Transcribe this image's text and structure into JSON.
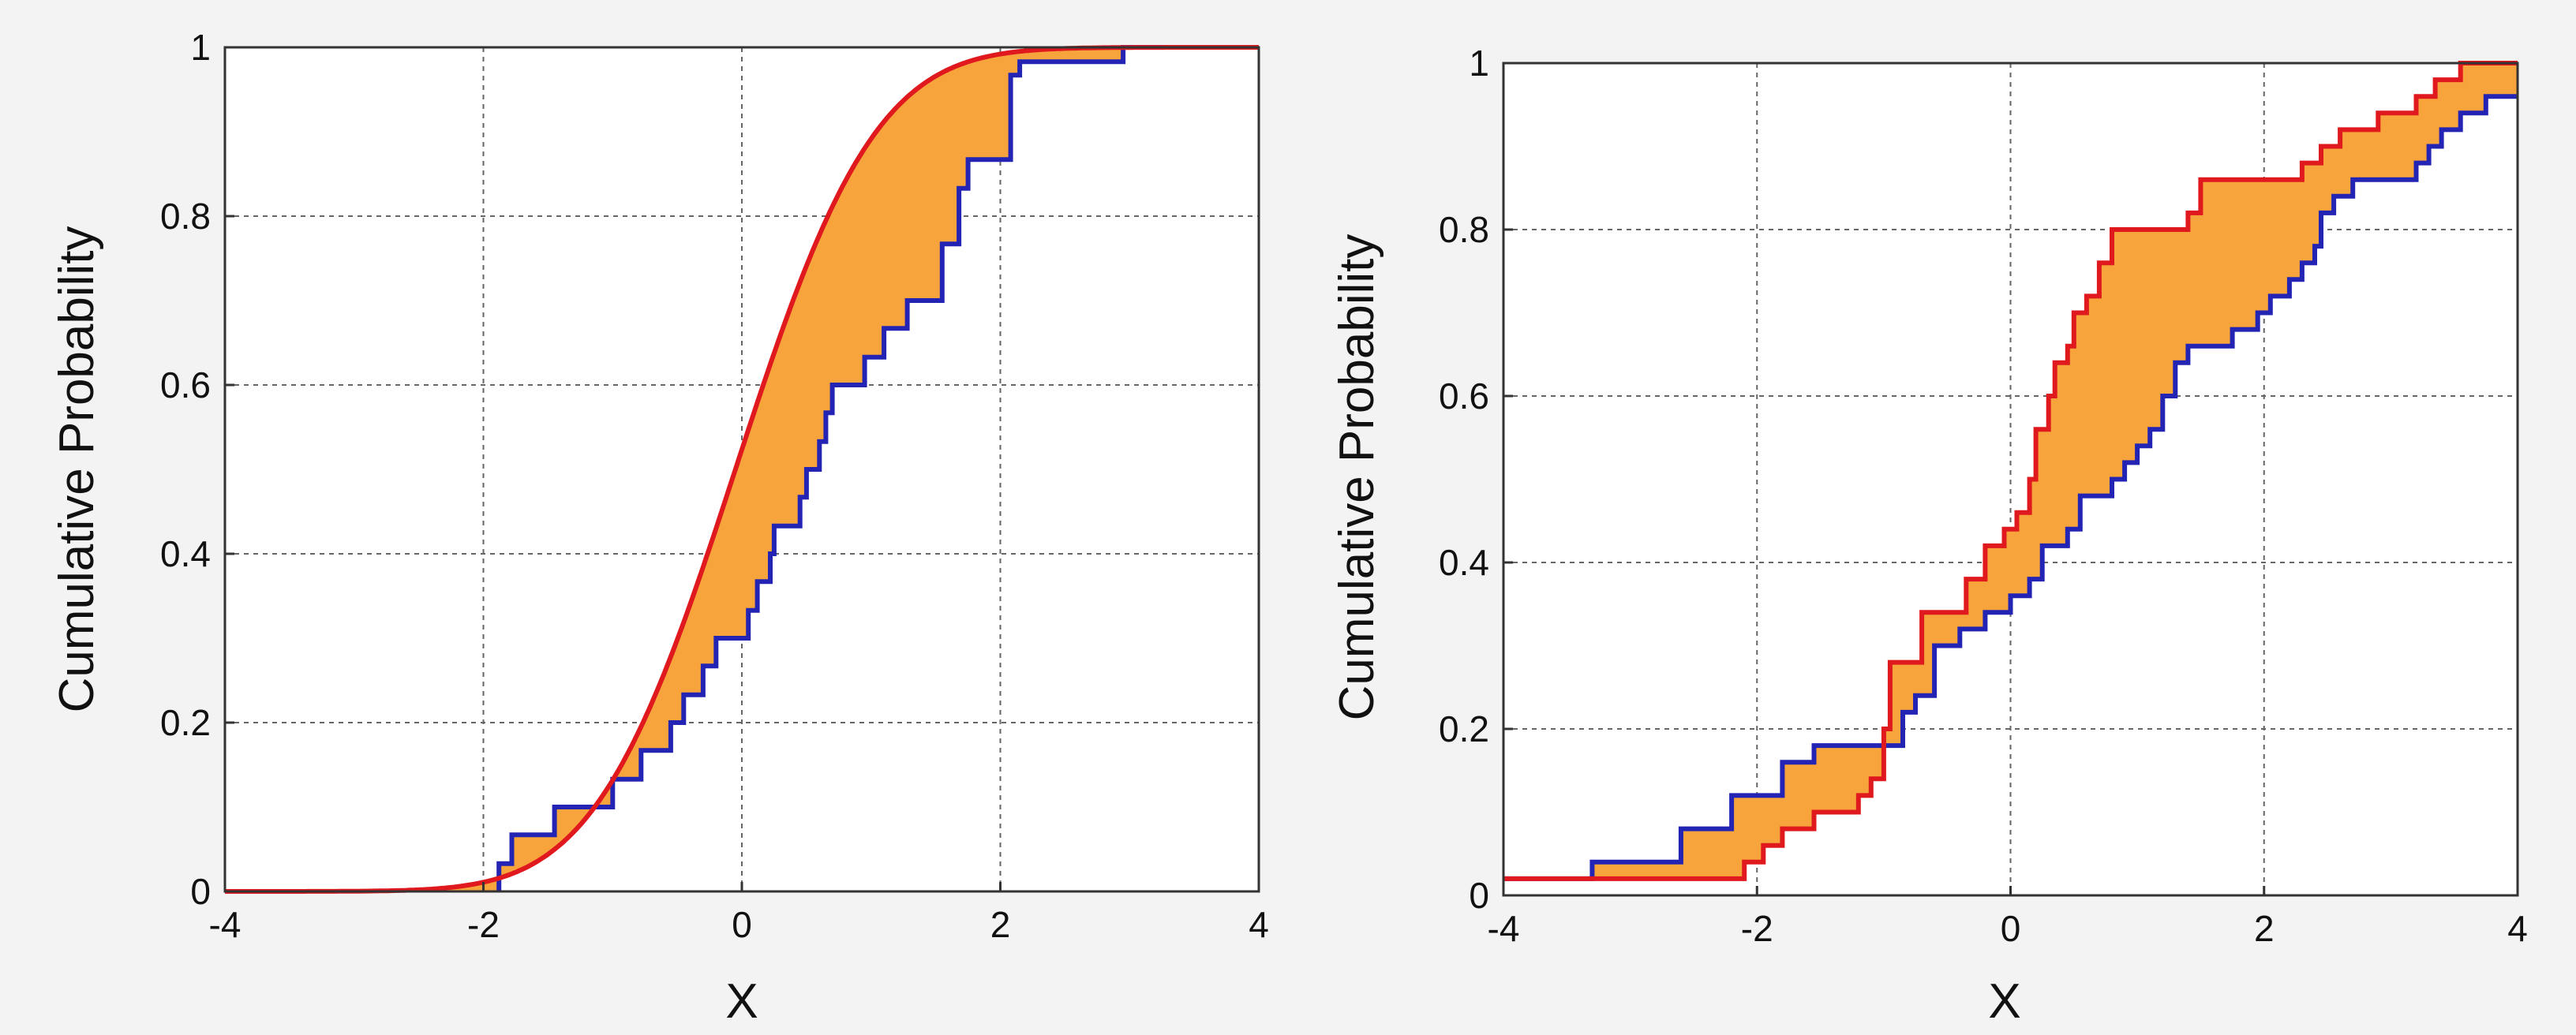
{
  "colors": {
    "band_fill": "#f7a43c",
    "red_curve": "#e0191f",
    "blue_curve": "#2424b4",
    "grid": "#666666",
    "axes": "#333333",
    "plot_background": "#ffffff",
    "page_background": "#f3f3f3"
  },
  "chart_data": [
    {
      "type": "line",
      "description": "empirical CDF step function (blue) vs fitted normal CDF (red), region between shaded orange",
      "xlabel": "X",
      "ylabel": "Cumulative Probability",
      "xlim": [
        -4,
        4
      ],
      "ylim": [
        0,
        1
      ],
      "xticks": [
        -4,
        -2,
        0,
        2,
        4
      ],
      "xtick_labels": [
        "-4",
        "-2",
        "0",
        "2",
        "4"
      ],
      "yticks": [
        0,
        0.2,
        0.4,
        0.6,
        0.8,
        1
      ],
      "ytick_labels": [
        "0",
        "0.2",
        "0.4",
        "0.6",
        "0.8",
        "1"
      ],
      "grid": true,
      "shaded_between": true,
      "series": [
        {
          "kind": "normal-cdf",
          "color": "red",
          "mu": -0.05,
          "sigma": 0.85,
          "x_range": [
            -4,
            4
          ]
        },
        {
          "kind": "step",
          "color": "blue",
          "points": [
            [
              -1.88,
              0
            ],
            [
              -1.88,
              0.033
            ],
            [
              -1.78,
              0.033
            ],
            [
              -1.78,
              0.067
            ],
            [
              -1.45,
              0.067
            ],
            [
              -1.45,
              0.1
            ],
            [
              -1.0,
              0.1
            ],
            [
              -1.0,
              0.133
            ],
            [
              -0.78,
              0.133
            ],
            [
              -0.78,
              0.167
            ],
            [
              -0.55,
              0.167
            ],
            [
              -0.55,
              0.2
            ],
            [
              -0.45,
              0.2
            ],
            [
              -0.45,
              0.233
            ],
            [
              -0.3,
              0.233
            ],
            [
              -0.3,
              0.267
            ],
            [
              -0.2,
              0.267
            ],
            [
              -0.2,
              0.3
            ],
            [
              0.05,
              0.3
            ],
            [
              0.05,
              0.333
            ],
            [
              0.12,
              0.333
            ],
            [
              0.12,
              0.367
            ],
            [
              0.22,
              0.367
            ],
            [
              0.22,
              0.4
            ],
            [
              0.25,
              0.4
            ],
            [
              0.25,
              0.433
            ],
            [
              0.45,
              0.433
            ],
            [
              0.45,
              0.467
            ],
            [
              0.5,
              0.467
            ],
            [
              0.5,
              0.5
            ],
            [
              0.6,
              0.5
            ],
            [
              0.6,
              0.533
            ],
            [
              0.65,
              0.533
            ],
            [
              0.65,
              0.567
            ],
            [
              0.7,
              0.567
            ],
            [
              0.7,
              0.6
            ],
            [
              0.95,
              0.6
            ],
            [
              0.95,
              0.633
            ],
            [
              1.1,
              0.633
            ],
            [
              1.1,
              0.667
            ],
            [
              1.28,
              0.667
            ],
            [
              1.28,
              0.7
            ],
            [
              1.55,
              0.7
            ],
            [
              1.55,
              0.767
            ],
            [
              1.68,
              0.767
            ],
            [
              1.68,
              0.833
            ],
            [
              1.75,
              0.833
            ],
            [
              1.75,
              0.867
            ],
            [
              2.08,
              0.867
            ],
            [
              2.08,
              0.967
            ],
            [
              2.15,
              0.967
            ],
            [
              2.15,
              0.983
            ],
            [
              2.95,
              0.983
            ],
            [
              2.95,
              1
            ],
            [
              4,
              1
            ]
          ]
        }
      ]
    },
    {
      "type": "line",
      "description": "two empirical CDF step functions (red and blue), region between shaded orange",
      "xlabel": "X",
      "ylabel": "Cumulative Probability",
      "xlim": [
        -4,
        4
      ],
      "ylim": [
        0,
        1
      ],
      "xticks": [
        -4,
        -2,
        0,
        2,
        4
      ],
      "xtick_labels": [
        "-4",
        "-2",
        "0",
        "2",
        "4"
      ],
      "yticks": [
        0,
        0.2,
        0.4,
        0.6,
        0.8,
        1
      ],
      "ytick_labels": [
        "0",
        "0.2",
        "0.4",
        "0.6",
        "0.8",
        "1"
      ],
      "grid": true,
      "shaded_between": true,
      "series": [
        {
          "kind": "step",
          "color": "red",
          "points": [
            [
              -4,
              0.02
            ],
            [
              -2.1,
              0.02
            ],
            [
              -2.1,
              0.04
            ],
            [
              -1.95,
              0.04
            ],
            [
              -1.95,
              0.06
            ],
            [
              -1.8,
              0.06
            ],
            [
              -1.8,
              0.08
            ],
            [
              -1.55,
              0.08
            ],
            [
              -1.55,
              0.1
            ],
            [
              -1.2,
              0.1
            ],
            [
              -1.2,
              0.12
            ],
            [
              -1.1,
              0.12
            ],
            [
              -1.1,
              0.14
            ],
            [
              -1.0,
              0.14
            ],
            [
              -1.0,
              0.2
            ],
            [
              -0.95,
              0.2
            ],
            [
              -0.95,
              0.28
            ],
            [
              -0.7,
              0.28
            ],
            [
              -0.7,
              0.34
            ],
            [
              -0.35,
              0.34
            ],
            [
              -0.35,
              0.38
            ],
            [
              -0.2,
              0.38
            ],
            [
              -0.2,
              0.42
            ],
            [
              -0.05,
              0.42
            ],
            [
              -0.05,
              0.44
            ],
            [
              0.05,
              0.44
            ],
            [
              0.05,
              0.46
            ],
            [
              0.15,
              0.46
            ],
            [
              0.15,
              0.5
            ],
            [
              0.2,
              0.5
            ],
            [
              0.2,
              0.56
            ],
            [
              0.3,
              0.56
            ],
            [
              0.3,
              0.6
            ],
            [
              0.35,
              0.6
            ],
            [
              0.35,
              0.64
            ],
            [
              0.45,
              0.64
            ],
            [
              0.45,
              0.66
            ],
            [
              0.5,
              0.66
            ],
            [
              0.5,
              0.7
            ],
            [
              0.6,
              0.7
            ],
            [
              0.6,
              0.72
            ],
            [
              0.7,
              0.72
            ],
            [
              0.7,
              0.76
            ],
            [
              0.8,
              0.76
            ],
            [
              0.8,
              0.8
            ],
            [
              1.4,
              0.8
            ],
            [
              1.4,
              0.82
            ],
            [
              1.5,
              0.82
            ],
            [
              1.5,
              0.86
            ],
            [
              2.3,
              0.86
            ],
            [
              2.3,
              0.88
            ],
            [
              2.45,
              0.88
            ],
            [
              2.45,
              0.9
            ],
            [
              2.6,
              0.9
            ],
            [
              2.6,
              0.92
            ],
            [
              2.9,
              0.92
            ],
            [
              2.9,
              0.94
            ],
            [
              3.2,
              0.94
            ],
            [
              3.2,
              0.96
            ],
            [
              3.35,
              0.96
            ],
            [
              3.35,
              0.98
            ],
            [
              3.55,
              0.98
            ],
            [
              3.55,
              1
            ],
            [
              4,
              1
            ]
          ]
        },
        {
          "kind": "step",
          "color": "blue",
          "points": [
            [
              -4,
              0.02
            ],
            [
              -3.3,
              0.02
            ],
            [
              -3.3,
              0.04
            ],
            [
              -2.6,
              0.04
            ],
            [
              -2.6,
              0.08
            ],
            [
              -2.2,
              0.08
            ],
            [
              -2.2,
              0.12
            ],
            [
              -1.8,
              0.12
            ],
            [
              -1.8,
              0.16
            ],
            [
              -1.55,
              0.16
            ],
            [
              -1.55,
              0.18
            ],
            [
              -0.85,
              0.18
            ],
            [
              -0.85,
              0.22
            ],
            [
              -0.75,
              0.22
            ],
            [
              -0.75,
              0.24
            ],
            [
              -0.6,
              0.24
            ],
            [
              -0.6,
              0.3
            ],
            [
              -0.4,
              0.3
            ],
            [
              -0.4,
              0.32
            ],
            [
              -0.2,
              0.32
            ],
            [
              -0.2,
              0.34
            ],
            [
              0,
              0.34
            ],
            [
              0,
              0.36
            ],
            [
              0.15,
              0.36
            ],
            [
              0.15,
              0.38
            ],
            [
              0.25,
              0.38
            ],
            [
              0.25,
              0.42
            ],
            [
              0.45,
              0.42
            ],
            [
              0.45,
              0.44
            ],
            [
              0.55,
              0.44
            ],
            [
              0.55,
              0.48
            ],
            [
              0.8,
              0.48
            ],
            [
              0.8,
              0.5
            ],
            [
              0.9,
              0.5
            ],
            [
              0.9,
              0.52
            ],
            [
              1.0,
              0.52
            ],
            [
              1.0,
              0.54
            ],
            [
              1.1,
              0.54
            ],
            [
              1.1,
              0.56
            ],
            [
              1.2,
              0.56
            ],
            [
              1.2,
              0.6
            ],
            [
              1.3,
              0.6
            ],
            [
              1.3,
              0.64
            ],
            [
              1.4,
              0.64
            ],
            [
              1.4,
              0.66
            ],
            [
              1.75,
              0.66
            ],
            [
              1.75,
              0.68
            ],
            [
              1.95,
              0.68
            ],
            [
              1.95,
              0.7
            ],
            [
              2.05,
              0.7
            ],
            [
              2.05,
              0.72
            ],
            [
              2.2,
              0.72
            ],
            [
              2.2,
              0.74
            ],
            [
              2.3,
              0.74
            ],
            [
              2.3,
              0.76
            ],
            [
              2.4,
              0.76
            ],
            [
              2.4,
              0.78
            ],
            [
              2.45,
              0.78
            ],
            [
              2.45,
              0.82
            ],
            [
              2.55,
              0.82
            ],
            [
              2.55,
              0.84
            ],
            [
              2.7,
              0.84
            ],
            [
              2.7,
              0.86
            ],
            [
              3.2,
              0.86
            ],
            [
              3.2,
              0.88
            ],
            [
              3.3,
              0.88
            ],
            [
              3.3,
              0.9
            ],
            [
              3.4,
              0.9
            ],
            [
              3.4,
              0.92
            ],
            [
              3.55,
              0.92
            ],
            [
              3.55,
              0.94
            ],
            [
              3.75,
              0.94
            ],
            [
              3.75,
              0.96
            ],
            [
              4,
              0.96
            ]
          ]
        }
      ]
    }
  ]
}
